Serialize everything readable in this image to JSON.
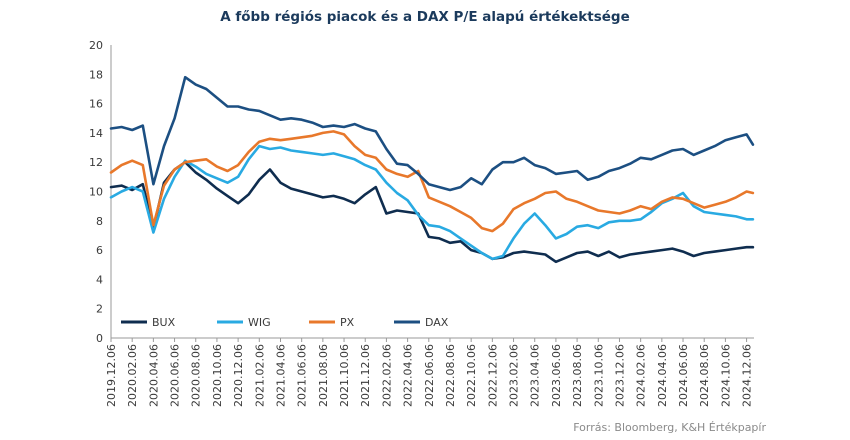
{
  "chart_data": {
    "type": "line",
    "title": "A főbb régiós piacok és a DAX P/E alapú értékektsége",
    "source": "Forrás: Bloomberg, K&H Értékpapír",
    "ylim": [
      0,
      20
    ],
    "y_ticks": [
      "0",
      "2",
      "4",
      "6",
      "8",
      "10",
      "12",
      "14",
      "16",
      "18",
      "20"
    ],
    "x_ticks": [
      "2019.12.06",
      "2020.02.06",
      "2020.04.06",
      "2020.06.06",
      "2020.08.06",
      "2020.10.06",
      "2020.12.06",
      "2021.02.06",
      "2021.04.06",
      "2021.06.06",
      "2021.08.06",
      "2021.10.06",
      "2021.12.06",
      "2022.02.06",
      "2022.04.06",
      "2022.06.06",
      "2022.08.06",
      "2022.10.06",
      "2022.12.06",
      "2023.02.06",
      "2023.04.06",
      "2023.06.06",
      "2023.08.06",
      "2023.10.06",
      "2023.12.06",
      "2024.02.06",
      "2024.04.06",
      "2024.06.06",
      "2024.08.06",
      "2024.10.06",
      "2024.12.06"
    ],
    "grid": false,
    "legend_position": "inside-bottom-left",
    "x": [
      0,
      0.5,
      1,
      1.5,
      2,
      2.5,
      3,
      3.5,
      4,
      4.5,
      5,
      5.5,
      6,
      6.5,
      7,
      7.5,
      8,
      8.5,
      9,
      9.5,
      10,
      10.5,
      11,
      11.5,
      12,
      12.5,
      13,
      13.5,
      14,
      14.5,
      15,
      15.5,
      16,
      16.5,
      17,
      17.5,
      18,
      18.5,
      19,
      19.5,
      20,
      20.5,
      21,
      21.5,
      22,
      22.5,
      23,
      23.5,
      24,
      24.5,
      25,
      25.5,
      26,
      26.5,
      27,
      27.5,
      28,
      28.5,
      29,
      29.5,
      30,
      30.3
    ],
    "series": [
      {
        "name": "BUX",
        "color": "#0f2d4f",
        "values": [
          10.3,
          10.4,
          10.1,
          10.5,
          7.5,
          10.6,
          11.5,
          12.0,
          11.3,
          10.8,
          10.2,
          9.7,
          9.2,
          9.8,
          10.8,
          11.5,
          10.6,
          10.2,
          10.0,
          9.8,
          9.6,
          9.7,
          9.5,
          9.2,
          9.8,
          10.3,
          8.5,
          8.7,
          8.6,
          8.5,
          6.9,
          6.8,
          6.5,
          6.6,
          6.0,
          5.8,
          5.4,
          5.5,
          5.8,
          5.9,
          5.8,
          5.7,
          5.2,
          5.5,
          5.8,
          5.9,
          5.6,
          5.9,
          5.5,
          5.7,
          5.8,
          5.9,
          6.0,
          6.1,
          5.9,
          5.6,
          5.8,
          5.9,
          6.0,
          6.1,
          6.2,
          6.2
        ]
      },
      {
        "name": "WIG",
        "color": "#29aae2",
        "values": [
          9.6,
          10.0,
          10.3,
          10.0,
          7.2,
          9.5,
          11.0,
          12.1,
          11.7,
          11.2,
          10.9,
          10.6,
          11.0,
          12.2,
          13.1,
          12.9,
          13.0,
          12.8,
          12.7,
          12.6,
          12.5,
          12.6,
          12.4,
          12.2,
          11.8,
          11.5,
          10.6,
          9.9,
          9.4,
          8.4,
          7.7,
          7.6,
          7.3,
          6.8,
          6.3,
          5.8,
          5.4,
          5.6,
          6.8,
          7.8,
          8.5,
          7.7,
          6.8,
          7.1,
          7.6,
          7.7,
          7.5,
          7.9,
          8.0,
          8.0,
          8.1,
          8.6,
          9.2,
          9.5,
          9.9,
          9.0,
          8.6,
          8.5,
          8.4,
          8.3,
          8.1,
          8.1
        ]
      },
      {
        "name": "PX",
        "color": "#e8782b",
        "values": [
          11.3,
          11.8,
          12.1,
          11.8,
          7.7,
          10.4,
          11.5,
          12.0,
          12.1,
          12.2,
          11.7,
          11.4,
          11.8,
          12.7,
          13.4,
          13.6,
          13.5,
          13.6,
          13.7,
          13.8,
          14.0,
          14.1,
          13.9,
          13.1,
          12.5,
          12.3,
          11.5,
          11.2,
          11.0,
          11.4,
          9.6,
          9.3,
          9.0,
          8.6,
          8.2,
          7.5,
          7.3,
          7.8,
          8.8,
          9.2,
          9.5,
          9.9,
          10.0,
          9.5,
          9.3,
          9.0,
          8.7,
          8.6,
          8.5,
          8.7,
          9.0,
          8.8,
          9.3,
          9.6,
          9.5,
          9.2,
          8.9,
          9.1,
          9.3,
          9.6,
          10.0,
          9.9
        ]
      },
      {
        "name": "DAX",
        "color": "#1c4f82",
        "values": [
          14.3,
          14.4,
          14.2,
          14.5,
          10.5,
          13.1,
          15.0,
          17.8,
          17.3,
          17.0,
          16.4,
          15.8,
          15.8,
          15.6,
          15.5,
          15.2,
          14.9,
          15.0,
          14.9,
          14.7,
          14.4,
          14.5,
          14.4,
          14.6,
          14.3,
          14.1,
          12.9,
          11.9,
          11.8,
          11.2,
          10.5,
          10.3,
          10.1,
          10.3,
          10.9,
          10.5,
          11.5,
          12.0,
          12.0,
          12.3,
          11.8,
          11.6,
          11.2,
          11.3,
          11.4,
          10.8,
          11.0,
          11.4,
          11.6,
          11.9,
          12.3,
          12.2,
          12.5,
          12.8,
          12.9,
          12.5,
          12.8,
          13.1,
          13.5,
          13.7,
          13.9,
          13.2
        ]
      }
    ]
  }
}
